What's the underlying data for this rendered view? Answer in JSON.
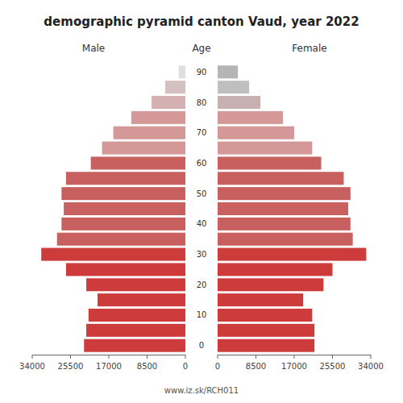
{
  "chart_data": {
    "type": "bar",
    "orientation": "horizontal",
    "title": "demographic pyramid canton Vaud, year 2022",
    "ylabel": "Age",
    "categories": [
      "0",
      null,
      "10",
      null,
      "20",
      null,
      "30",
      null,
      "40",
      null,
      "50",
      null,
      "60",
      null,
      "70",
      null,
      "80",
      null,
      "90"
    ],
    "series": [
      {
        "name": "Male",
        "values": [
          22500,
          22000,
          21500,
          19500,
          22000,
          26500,
          32000,
          28500,
          27500,
          27000,
          27500,
          26500,
          21000,
          18500,
          16000,
          12000,
          7500,
          4500,
          1500
        ],
        "colors": [
          "#cd3b3b",
          "#cd3b3b",
          "#cd3b3b",
          "#cd3b3b",
          "#cd3b3b",
          "#cd3b3b",
          "#cd3b3b",
          "#c96060",
          "#c96060",
          "#c96060",
          "#c96060",
          "#c96060",
          "#c96060",
          "#d49898",
          "#d49898",
          "#d49898",
          "#d4b0b0",
          "#d4c0c0",
          "#e0dede"
        ]
      },
      {
        "name": "Female",
        "values": [
          21500,
          21500,
          21000,
          19000,
          23500,
          25500,
          33000,
          30000,
          29500,
          29000,
          29500,
          28000,
          23000,
          21000,
          17000,
          14500,
          9500,
          7000,
          4500
        ],
        "colors": [
          "#cd3b3b",
          "#cd3b3b",
          "#cd3b3b",
          "#cd3b3b",
          "#cd3b3b",
          "#cd3b3b",
          "#cd3b3b",
          "#c96060",
          "#c96060",
          "#c96060",
          "#c96060",
          "#c96060",
          "#c96060",
          "#d49898",
          "#d49898",
          "#d49898",
          "#c8b0b0",
          "#bfbfbf",
          "#b5b5b5"
        ]
      }
    ],
    "xlim": [
      0,
      34000
    ],
    "xticks": [
      0,
      8500,
      17000,
      25500,
      34000
    ],
    "annotations": [
      "www.iz.sk/RCH011"
    ]
  }
}
